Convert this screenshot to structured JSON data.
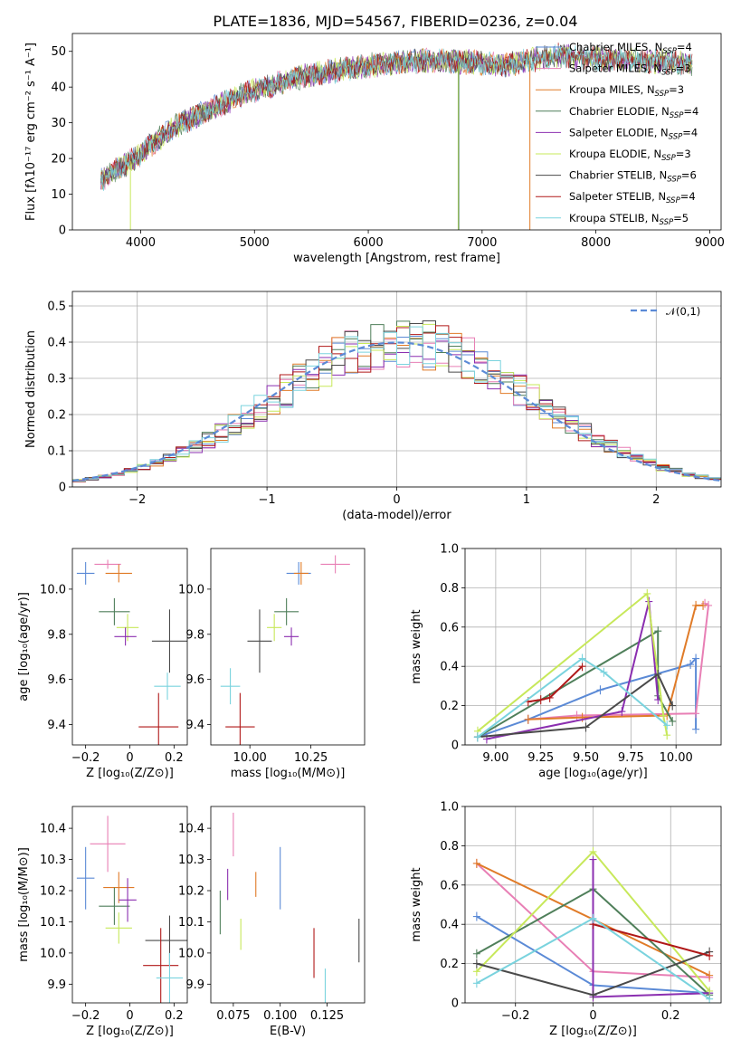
{
  "figure": {
    "title": "PLATE=1836, MJD=54567, FIBERID=0236, z=0.04"
  },
  "colors": {
    "Chabrier MILES": "#5b8ad6",
    "Salpeter MILES": "#e87fb5",
    "Kroupa MILES": "#e07b28",
    "Chabrier ELODIE": "#4f7f5a",
    "Salpeter ELODIE": "#8b2fb0",
    "Kroupa ELODIE": "#c7e85a",
    "Chabrier STELIB": "#4a4a4a",
    "Salpeter STELIB": "#b01818",
    "Kroupa STELIB": "#7ad3de"
  },
  "chart_data": [
    {
      "id": "spectrum",
      "type": "line",
      "xlabel": "wavelength [Angstrom, rest frame]",
      "ylabel": "Flux [fλ10⁻¹⁷ erg cm⁻² s⁻¹ A⁻¹]",
      "xlim": [
        3400,
        9100
      ],
      "ylim": [
        0,
        55
      ],
      "xticks": [
        4000,
        5000,
        6000,
        7000,
        8000,
        9000
      ],
      "yticks": [
        0,
        10,
        20,
        30,
        40,
        50
      ],
      "grid": false,
      "legend_loc": "right",
      "legend": [
        {
          "label": "Chabrier MILES, N",
          "sub": "SSP",
          "suffix": "=4",
          "color_key": "Chabrier MILES"
        },
        {
          "label": "Salpeter MILES, N",
          "sub": "SSP",
          "suffix": "=3",
          "color_key": "Salpeter MILES"
        },
        {
          "label": "Kroupa MILES, N",
          "sub": "SSP",
          "suffix": "=3",
          "color_key": "Kroupa MILES"
        },
        {
          "label": "Chabrier ELODIE, N",
          "sub": "SSP",
          "suffix": "=4",
          "color_key": "Chabrier ELODIE"
        },
        {
          "label": "Salpeter ELODIE, N",
          "sub": "SSP",
          "suffix": "=4",
          "color_key": "Salpeter ELODIE"
        },
        {
          "label": "Kroupa ELODIE, N",
          "sub": "SSP",
          "suffix": "=3",
          "color_key": "Kroupa ELODIE"
        },
        {
          "label": "Chabrier STELIB, N",
          "sub": "SSP",
          "suffix": "=6",
          "color_key": "Chabrier STELIB"
        },
        {
          "label": "Salpeter STELIB, N",
          "sub": "SSP",
          "suffix": "=4",
          "color_key": "Salpeter STELIB"
        },
        {
          "label": "Kroupa STELIB, N",
          "sub": "SSP",
          "suffix": "=5",
          "color_key": "Kroupa STELIB"
        }
      ],
      "continuum": [
        [
          3650,
          14
        ],
        [
          3800,
          17
        ],
        [
          3950,
          20
        ],
        [
          4100,
          24
        ],
        [
          4300,
          29
        ],
        [
          4500,
          32
        ],
        [
          4700,
          35
        ],
        [
          4900,
          38
        ],
        [
          5100,
          40
        ],
        [
          5300,
          42
        ],
        [
          5500,
          43.5
        ],
        [
          5800,
          45
        ],
        [
          6000,
          46
        ],
        [
          6300,
          47
        ],
        [
          6600,
          47.5
        ],
        [
          6900,
          47
        ],
        [
          7200,
          46
        ],
        [
          7500,
          48
        ],
        [
          7700,
          49
        ],
        [
          8000,
          48
        ],
        [
          8300,
          47.5
        ],
        [
          8600,
          47
        ],
        [
          8850,
          46.5
        ]
      ],
      "dips": [
        {
          "x": 3910,
          "y": 0,
          "color_key": "Kroupa ELODIE"
        },
        {
          "x": 6790,
          "y": 0,
          "color_key": "Kroupa ELODIE"
        },
        {
          "x": 6795,
          "y": 0,
          "color_key": "Chabrier ELODIE"
        },
        {
          "x": 7420,
          "y": 0,
          "color_key": "Kroupa MILES"
        }
      ]
    },
    {
      "id": "residuals",
      "type": "step",
      "xlabel": "(data-model)/error",
      "ylabel": "Normed distribution",
      "xlim": [
        -2.5,
        2.5
      ],
      "ylim": [
        0,
        0.54
      ],
      "xticks": [
        -2,
        -1,
        0,
        1,
        2
      ],
      "yticks": [
        0.0,
        0.1,
        0.2,
        0.3,
        0.4,
        0.5
      ],
      "grid": true,
      "legend_label": "𝒩(0,1)",
      "bin_width": 0.1
    },
    {
      "id": "Z-age",
      "type": "errorbar",
      "xlabel": "Z [log₁₀(Z/Z⊙)]",
      "ylabel": "age  [log₁₀(age/yr)]",
      "xlim": [
        -0.26,
        0.26
      ],
      "ylim": [
        9.31,
        10.18
      ],
      "xticks": [
        -0.2,
        0.0,
        0.2
      ],
      "yticks": [
        9.4,
        9.6,
        9.8,
        10.0
      ],
      "points": [
        {
          "k": "Chabrier MILES",
          "x": -0.2,
          "xe": 0.04,
          "y": 10.07,
          "ye": 0.05
        },
        {
          "k": "Salpeter MILES",
          "x": -0.1,
          "xe": 0.06,
          "y": 10.11,
          "ye": 0.02
        },
        {
          "k": "Kroupa MILES",
          "x": -0.05,
          "xe": 0.06,
          "y": 10.07,
          "ye": 0.04
        },
        {
          "k": "Chabrier ELODIE",
          "x": -0.07,
          "xe": 0.07,
          "y": 9.9,
          "ye": 0.06
        },
        {
          "k": "Kroupa ELODIE",
          "x": -0.01,
          "xe": 0.05,
          "y": 9.83,
          "ye": 0.06
        },
        {
          "k": "Salpeter ELODIE",
          "x": -0.02,
          "xe": 0.05,
          "y": 9.79,
          "ye": 0.04
        },
        {
          "k": "Chabrier STELIB",
          "x": 0.18,
          "xe": 0.08,
          "y": 9.77,
          "ye": 0.14
        },
        {
          "k": "Kroupa STELIB",
          "x": 0.17,
          "xe": 0.06,
          "y": 9.57,
          "ye": 0.06
        },
        {
          "k": "Salpeter STELIB",
          "x": 0.13,
          "xe": 0.09,
          "y": 9.39,
          "ye": 0.15
        }
      ]
    },
    {
      "id": "mass-age",
      "type": "errorbar",
      "xlabel": "mass [log₁₀(M/M⊙)]",
      "ylabel": "",
      "xlim": [
        9.84,
        10.47
      ],
      "ylim": [
        9.31,
        10.18
      ],
      "xticks": [
        10.0,
        10.25
      ],
      "yticks": [
        9.4,
        9.6,
        9.8,
        10.0
      ],
      "points": [
        {
          "k": "Chabrier MILES",
          "x": 10.2,
          "xe": 0.05,
          "y": 10.07,
          "ye": 0.05
        },
        {
          "k": "Salpeter MILES",
          "x": 10.35,
          "xe": 0.06,
          "y": 10.11,
          "ye": 0.04
        },
        {
          "k": "Kroupa MILES",
          "x": 10.21,
          "xe": 0.03,
          "y": 10.07,
          "ye": 0.05
        },
        {
          "k": "Chabrier ELODIE",
          "x": 10.15,
          "xe": 0.05,
          "y": 9.9,
          "ye": 0.06
        },
        {
          "k": "Kroupa ELODIE",
          "x": 10.1,
          "xe": 0.03,
          "y": 9.83,
          "ye": 0.06
        },
        {
          "k": "Salpeter ELODIE",
          "x": 10.17,
          "xe": 0.03,
          "y": 9.79,
          "ye": 0.04
        },
        {
          "k": "Chabrier STELIB",
          "x": 10.04,
          "xe": 0.05,
          "y": 9.77,
          "ye": 0.14
        },
        {
          "k": "Kroupa STELIB",
          "x": 9.92,
          "xe": 0.04,
          "y": 9.57,
          "ye": 0.08
        },
        {
          "k": "Salpeter STELIB",
          "x": 9.96,
          "xe": 0.06,
          "y": 9.39,
          "ye": 0.15
        }
      ]
    },
    {
      "id": "age-weight",
      "type": "line",
      "xlabel": "age  [log₁₀(age/yr)]",
      "ylabel": "mass weight",
      "xlim": [
        8.83,
        10.25
      ],
      "ylim": [
        0.0,
        1.0
      ],
      "xticks": [
        9.0,
        9.25,
        9.5,
        9.75,
        10.0
      ],
      "yticks": [
        0.0,
        0.2,
        0.4,
        0.6,
        0.8,
        1.0
      ],
      "grid": true,
      "series": [
        {
          "k": "Chabrier MILES",
          "x": [
            8.9,
            9.18,
            9.58,
            10.08,
            10.11,
            10.11
          ],
          "y": [
            0.04,
            0.13,
            0.28,
            0.41,
            0.44,
            0.08
          ]
        },
        {
          "k": "Salpeter MILES",
          "x": [
            9.18,
            9.45,
            10.11,
            10.18,
            10.16
          ],
          "y": [
            0.13,
            0.15,
            0.16,
            0.71,
            0.72
          ]
        },
        {
          "k": "Kroupa MILES",
          "x": [
            9.18,
            9.48,
            9.95,
            10.11,
            10.15
          ],
          "y": [
            0.13,
            0.14,
            0.15,
            0.71,
            0.71
          ]
        },
        {
          "k": "Chabrier ELODIE",
          "x": [
            8.9,
            9.9,
            9.9,
            9.98
          ],
          "y": [
            0.04,
            0.58,
            0.25,
            0.12
          ]
        },
        {
          "k": "Salpeter ELODIE",
          "x": [
            8.95,
            9.7,
            9.85,
            9.9
          ],
          "y": [
            0.03,
            0.17,
            0.73,
            0.23
          ]
        },
        {
          "k": "Kroupa ELODIE",
          "x": [
            8.9,
            9.84,
            9.93,
            9.95
          ],
          "y": [
            0.07,
            0.77,
            0.15,
            0.05
          ]
        },
        {
          "k": "Chabrier STELIB",
          "x": [
            8.9,
            9.5,
            9.9,
            9.98
          ],
          "y": [
            0.04,
            0.09,
            0.36,
            0.2
          ]
        },
        {
          "k": "Salpeter STELIB",
          "x": [
            9.18,
            9.25,
            9.3,
            9.48
          ],
          "y": [
            0.22,
            0.23,
            0.24,
            0.4
          ]
        },
        {
          "k": "Kroupa STELIB",
          "x": [
            8.9,
            9.48,
            9.6,
            9.95
          ],
          "y": [
            0.04,
            0.44,
            0.37,
            0.1
          ]
        }
      ]
    },
    {
      "id": "Z-mass",
      "type": "errorbar",
      "xlabel": "Z [log₁₀(Z/Z⊙)]",
      "ylabel": "mass [log₁₀(M/M⊙)]",
      "xlim": [
        -0.26,
        0.26
      ],
      "ylim": [
        9.84,
        10.47
      ],
      "xticks": [
        -0.2,
        0.0,
        0.2
      ],
      "yticks": [
        9.9,
        10.0,
        10.1,
        10.2,
        10.3,
        10.4
      ],
      "points": [
        {
          "k": "Chabrier MILES",
          "x": -0.2,
          "xe": 0.04,
          "y": 10.24,
          "ye": 0.1
        },
        {
          "k": "Salpeter MILES",
          "x": -0.1,
          "xe": 0.08,
          "y": 10.35,
          "ye": 0.09
        },
        {
          "k": "Kroupa MILES",
          "x": -0.05,
          "xe": 0.07,
          "y": 10.21,
          "ye": 0.05
        },
        {
          "k": "Chabrier ELODIE",
          "x": -0.07,
          "xe": 0.07,
          "y": 10.15,
          "ye": 0.06
        },
        {
          "k": "Salpeter ELODIE",
          "x": -0.01,
          "xe": 0.04,
          "y": 10.17,
          "ye": 0.07
        },
        {
          "k": "Kroupa ELODIE",
          "x": -0.05,
          "xe": 0.06,
          "y": 10.08,
          "ye": 0.05
        },
        {
          "k": "Chabrier STELIB",
          "x": 0.18,
          "xe": 0.11,
          "y": 10.04,
          "ye": 0.08
        },
        {
          "k": "Salpeter STELIB",
          "x": 0.14,
          "xe": 0.08,
          "y": 9.96,
          "ye": 0.12
        },
        {
          "k": "Kroupa STELIB",
          "x": 0.18,
          "xe": 0.06,
          "y": 9.92,
          "ye": 0.08
        }
      ]
    },
    {
      "id": "ebv-mass",
      "type": "errorbar",
      "xlabel": "E(B-V)",
      "ylabel": "",
      "xlim": [
        0.063,
        0.145
      ],
      "ylim": [
        9.84,
        10.47
      ],
      "xticks": [
        0.075,
        0.1,
        0.125
      ],
      "xticklabels": [
        "0.075",
        "0.100",
        "0.125"
      ],
      "yticks": [
        9.9,
        10.0,
        10.1,
        10.2,
        10.3,
        10.4
      ],
      "points": [
        {
          "k": "Chabrier MILES",
          "x": 0.1,
          "xe": 0.0,
          "y": 10.24,
          "ye": 0.1
        },
        {
          "k": "Salpeter MILES",
          "x": 0.075,
          "xe": 0.0,
          "y": 10.38,
          "ye": 0.07
        },
        {
          "k": "Kroupa MILES",
          "x": 0.087,
          "xe": 0.0,
          "y": 10.22,
          "ye": 0.04
        },
        {
          "k": "Chabrier ELODIE",
          "x": 0.068,
          "xe": 0.0,
          "y": 10.13,
          "ye": 0.07
        },
        {
          "k": "Salpeter ELODIE",
          "x": 0.072,
          "xe": 0.0,
          "y": 10.22,
          "ye": 0.05
        },
        {
          "k": "Kroupa ELODIE",
          "x": 0.079,
          "xe": 0.0,
          "y": 10.06,
          "ye": 0.05
        },
        {
          "k": "Chabrier STELIB",
          "x": 0.142,
          "xe": 0.0,
          "y": 10.04,
          "ye": 0.07
        },
        {
          "k": "Salpeter STELIB",
          "x": 0.118,
          "xe": 0.0,
          "y": 10.0,
          "ye": 0.08
        },
        {
          "k": "Kroupa STELIB",
          "x": 0.124,
          "xe": 0.0,
          "y": 9.89,
          "ye": 0.06
        }
      ]
    },
    {
      "id": "Z-weight",
      "type": "line",
      "xlabel": "Z [log₁₀(Z/Z⊙)]",
      "ylabel": "mass weight",
      "xlim": [
        -0.33,
        0.33
      ],
      "ylim": [
        0.0,
        1.0
      ],
      "xticks": [
        -0.2,
        0.0,
        0.2
      ],
      "yticks": [
        0.0,
        0.2,
        0.4,
        0.6,
        0.8,
        1.0
      ],
      "grid": true,
      "series": [
        {
          "k": "Chabrier MILES",
          "x": [
            -0.3,
            0.0,
            0.3
          ],
          "y": [
            0.44,
            0.09,
            0.05
          ]
        },
        {
          "k": "Salpeter MILES",
          "x": [
            -0.3,
            0.0,
            0.3
          ],
          "y": [
            0.71,
            0.16,
            0.13
          ]
        },
        {
          "k": "Kroupa MILES",
          "x": [
            -0.3,
            0.3
          ],
          "y": [
            0.71,
            0.14
          ]
        },
        {
          "k": "Chabrier ELODIE",
          "x": [
            -0.3,
            0.0,
            0.3
          ],
          "y": [
            0.25,
            0.58,
            0.04
          ]
        },
        {
          "k": "Salpeter ELODIE",
          "x": [
            0.0,
            0.0,
            0.3
          ],
          "y": [
            0.73,
            0.03,
            0.05
          ]
        },
        {
          "k": "Kroupa ELODIE",
          "x": [
            -0.3,
            0.0,
            0.3
          ],
          "y": [
            0.16,
            0.77,
            0.06
          ]
        },
        {
          "k": "Chabrier STELIB",
          "x": [
            -0.3,
            0.0,
            0.3
          ],
          "y": [
            0.2,
            0.04,
            0.26
          ]
        },
        {
          "k": "Salpeter STELIB",
          "x": [
            0.0,
            0.3
          ],
          "y": [
            0.4,
            0.24
          ]
        },
        {
          "k": "Kroupa STELIB",
          "x": [
            -0.3,
            0.0,
            0.3
          ],
          "y": [
            0.1,
            0.43,
            0.02
          ]
        }
      ]
    }
  ]
}
